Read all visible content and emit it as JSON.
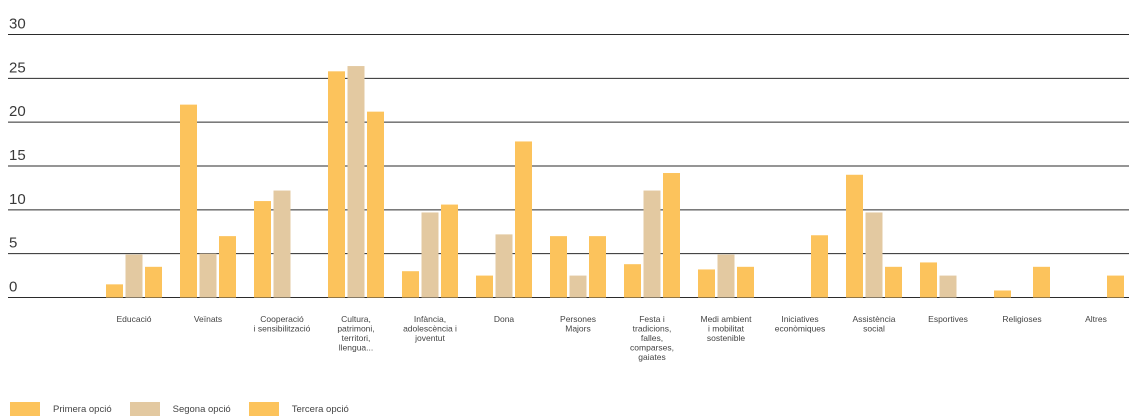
{
  "chart_data": {
    "type": "bar",
    "categories": [
      [
        "Educació"
      ],
      [
        "Veïnats"
      ],
      [
        "Cooperació",
        "i sensibilització"
      ],
      [
        "Cultura,",
        "patrimoni,",
        "territori,",
        "llengua..."
      ],
      [
        "Infància,",
        "adolescència i",
        "joventut"
      ],
      [
        "Dona"
      ],
      [
        "Persones",
        "Majors"
      ],
      [
        "Festa i",
        "tradicions,",
        "falles,",
        "comparses,",
        "gaiates"
      ],
      [
        "Medi ambient",
        "i mobilitat",
        "sostenible"
      ],
      [
        "Iniciatives",
        "econòmiques"
      ],
      [
        "Assistència",
        "social"
      ],
      [
        "Esportives"
      ],
      [
        "Religioses"
      ],
      [
        "Altres"
      ]
    ],
    "series": [
      {
        "name": "Primera opció",
        "color": "#fcc35c",
        "values": [
          1.5,
          22,
          11,
          25.8,
          3,
          2.5,
          7,
          3.8,
          3.2,
          0,
          14,
          4,
          0.8,
          0
        ]
      },
      {
        "name": "Segona opció",
        "color": "#e3c9a1",
        "values": [
          4.9,
          5,
          12.2,
          26.4,
          9.7,
          7.2,
          2.5,
          12.2,
          4.9,
          0,
          9.7,
          2.5,
          0,
          0
        ]
      },
      {
        "name": "Tercera opció",
        "color": "#fcc35c",
        "values": [
          3.5,
          7,
          0,
          21.2,
          10.6,
          17.8,
          7,
          14.2,
          3.5,
          7.1,
          3.5,
          0,
          3.5,
          2.5
        ]
      }
    ],
    "yticks": [
      0,
      5,
      10,
      15,
      20,
      25,
      30
    ],
    "ylim": [
      0,
      30
    ],
    "grid": true,
    "legend": "bottom-left"
  }
}
